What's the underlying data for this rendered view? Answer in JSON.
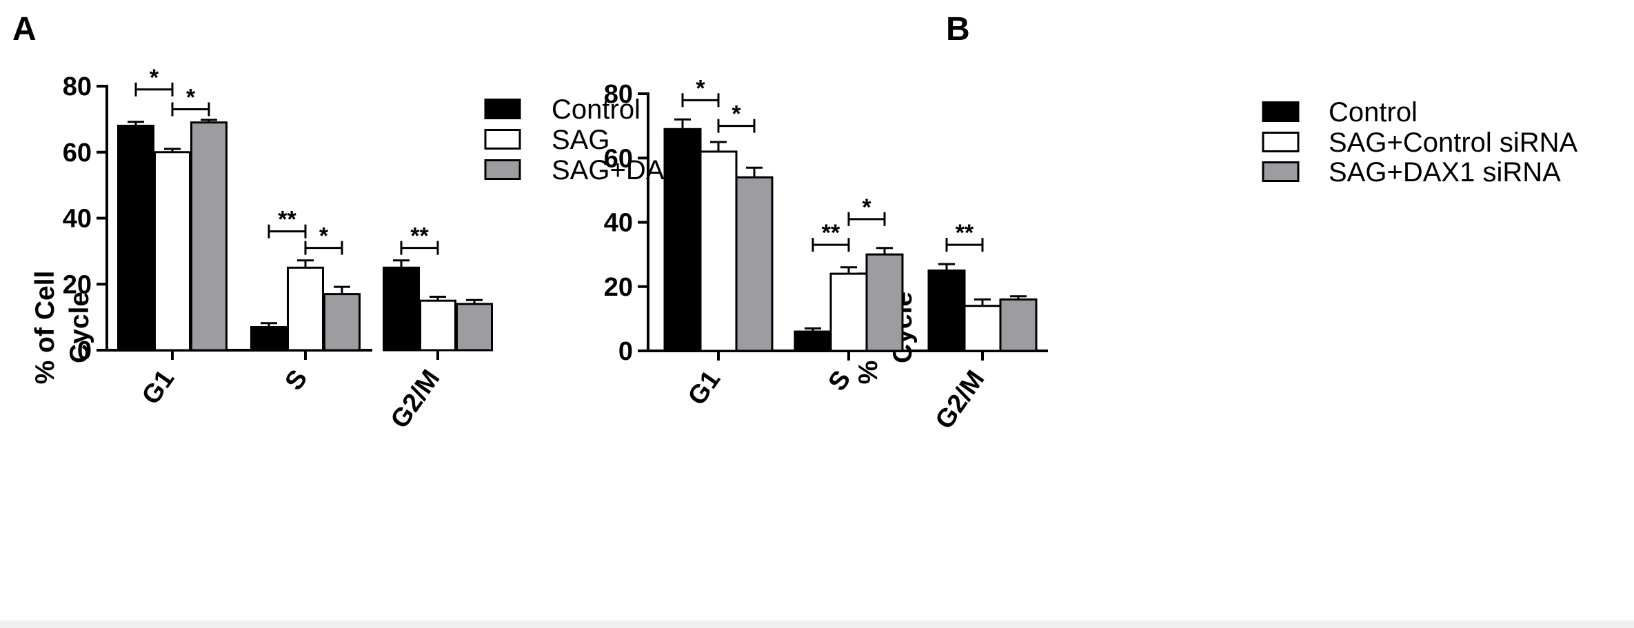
{
  "panels": [
    {
      "label": "A",
      "ylabel_lines": [
        "% of Cell",
        "Cycle"
      ],
      "chart_data": {
        "type": "bar",
        "categories": [
          "G1",
          "S",
          "G2/M"
        ],
        "ylim": [
          0,
          80
        ],
        "yticks": [
          0,
          20,
          40,
          60,
          80
        ],
        "series": [
          {
            "name": "Control",
            "values": [
              68,
              7,
              25
            ],
            "errors": [
              1.2,
              1.2,
              2.2
            ],
            "color": "#000000"
          },
          {
            "name": "SAG",
            "values": [
              60,
              25,
              15
            ],
            "errors": [
              1.0,
              2.2,
              1.2
            ],
            "color": "#ffffff"
          },
          {
            "name": "SAG+DAX1",
            "values": [
              69,
              17,
              14
            ],
            "errors": [
              0.8,
              2.2,
              1.2
            ],
            "color": "#9d9da1"
          }
        ],
        "significance": [
          {
            "category": 0,
            "from": 0,
            "to": 1,
            "y": 79,
            "label": "*"
          },
          {
            "category": 0,
            "from": 1,
            "to": 2,
            "y": 73,
            "label": "*"
          },
          {
            "category": 1,
            "from": 0,
            "to": 1,
            "y": 36,
            "label": "**"
          },
          {
            "category": 1,
            "from": 1,
            "to": 2,
            "y": 31,
            "label": "*"
          },
          {
            "category": 2,
            "from": 0,
            "to": 1,
            "y": 31,
            "label": "**"
          }
        ],
        "legend_position": "top-right"
      }
    },
    {
      "label": "B",
      "ylabel_lines": [
        "% of Cell",
        "Cycle"
      ],
      "chart_data": {
        "type": "bar",
        "categories": [
          "G1",
          "S",
          "G2/M"
        ],
        "ylim": [
          0,
          80
        ],
        "yticks": [
          0,
          20,
          40,
          60,
          80
        ],
        "series": [
          {
            "name": "Control",
            "values": [
              69,
              6,
              25
            ],
            "errors": [
              3.0,
              1.0,
              2.0
            ],
            "color": "#000000"
          },
          {
            "name": "SAG+Control siRNA",
            "values": [
              62,
              24,
              14
            ],
            "errors": [
              3.0,
              2.0,
              2.0
            ],
            "color": "#ffffff"
          },
          {
            "name": "SAG+DAX1 siRNA",
            "values": [
              54,
              30,
              16
            ],
            "errors": [
              3.0,
              2.0,
              1.0
            ],
            "color": "#9d9da1"
          }
        ],
        "significance": [
          {
            "category": 0,
            "from": 0,
            "to": 1,
            "y": 78,
            "label": "*"
          },
          {
            "category": 0,
            "from": 1,
            "to": 2,
            "y": 70,
            "label": "*"
          },
          {
            "category": 1,
            "from": 0,
            "to": 1,
            "y": 33,
            "label": "**"
          },
          {
            "category": 1,
            "from": 1,
            "to": 2,
            "y": 41,
            "label": "*"
          },
          {
            "category": 2,
            "from": 0,
            "to": 1,
            "y": 33,
            "label": "**"
          }
        ],
        "legend_position": "top-right"
      }
    }
  ]
}
